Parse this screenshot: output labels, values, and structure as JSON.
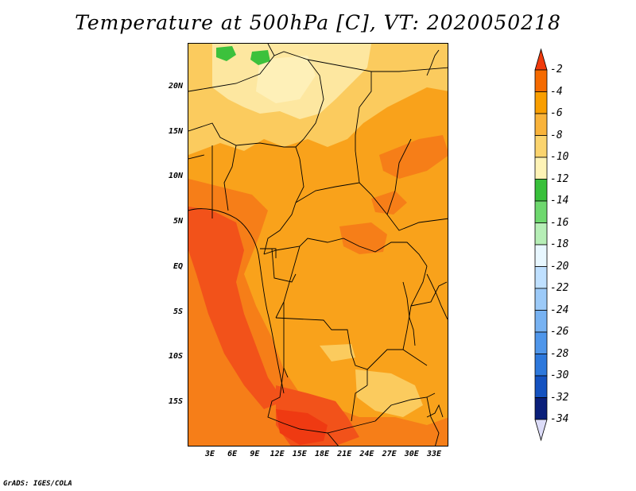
{
  "title": "Temperature at 500hPa [C], VT: 2020050218",
  "credit": "GrADS: IGES/COLA",
  "latitude_labels": [
    {
      "text": "20N",
      "lat": 20
    },
    {
      "text": "15N",
      "lat": 15
    },
    {
      "text": "10N",
      "lat": 10
    },
    {
      "text": "5N",
      "lat": 5
    },
    {
      "text": "EQ",
      "lat": 0
    },
    {
      "text": "5S",
      "lat": -5
    },
    {
      "text": "10S",
      "lat": -10
    },
    {
      "text": "15S",
      "lat": -15
    }
  ],
  "longitude_labels": [
    {
      "text": "3E",
      "lon": 3
    },
    {
      "text": "6E",
      "lon": 6
    },
    {
      "text": "9E",
      "lon": 9
    },
    {
      "text": "12E",
      "lon": 12
    },
    {
      "text": "15E",
      "lon": 15
    },
    {
      "text": "18E",
      "lon": 18
    },
    {
      "text": "21E",
      "lon": 21
    },
    {
      "text": "24E",
      "lon": 24
    },
    {
      "text": "27E",
      "lon": 27
    },
    {
      "text": "30E",
      "lon": 30
    },
    {
      "text": "33E",
      "lon": 33
    }
  ],
  "colorbar": {
    "labels": [
      "-2",
      "-4",
      "-6",
      "-8",
      "-10",
      "-12",
      "-14",
      "-16",
      "-18",
      "-20",
      "-22",
      "-24",
      "-26",
      "-28",
      "-30",
      "-32",
      "-34"
    ],
    "colors": [
      "#f03a0c",
      "#f56a00",
      "#f99e00",
      "#f9b33a",
      "#fbd46e",
      "#fef3b6",
      "#38c03a",
      "#6ed86e",
      "#b6eeb6",
      "#e8f7ff",
      "#bfe0ff",
      "#9ccaf8",
      "#77b2f2",
      "#4f96ea",
      "#2d78dc",
      "#1452c0",
      "#0a1f7a",
      "#dcdcf8"
    ]
  },
  "map_colors": {
    "base": "#f9a21b",
    "light": "#fbcb5e",
    "pale": "#fde7a0",
    "warm": "#f67e18",
    "hot": "#f2521a",
    "hottest": "#ef3a12",
    "green": "#3cc13c"
  }
}
